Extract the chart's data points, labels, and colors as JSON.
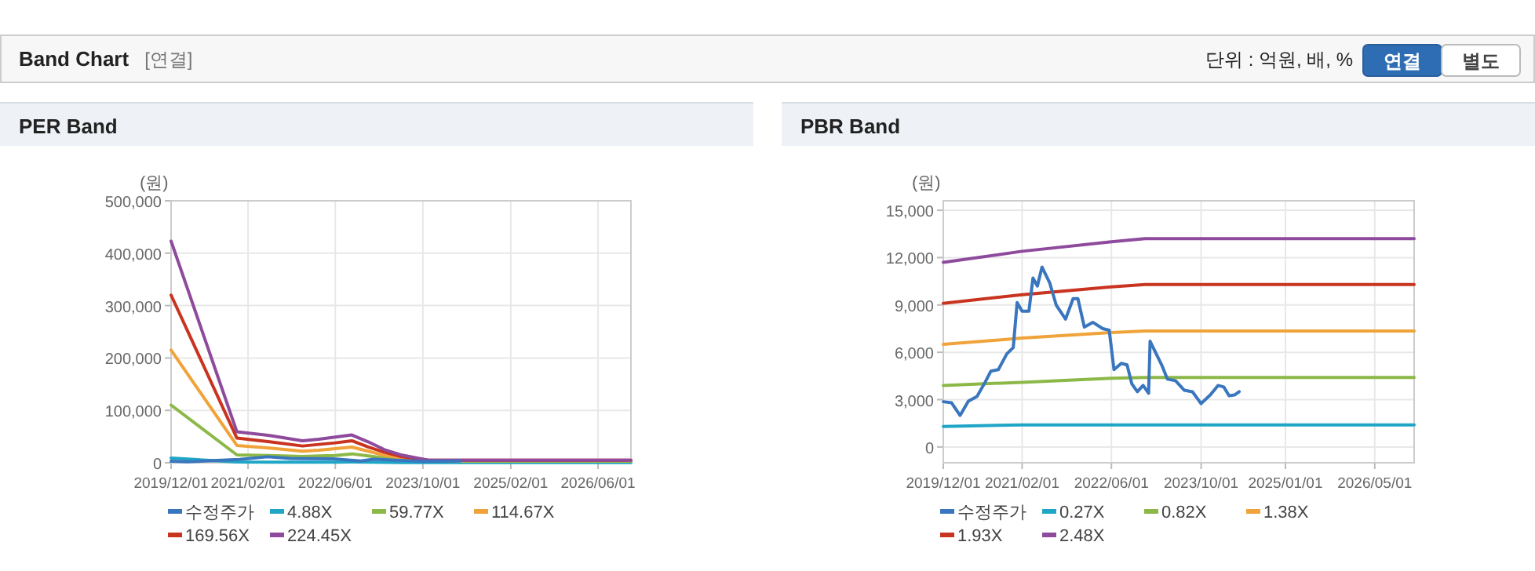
{
  "chart_data": [
    {
      "type": "other",
      "title": "Band Chart",
      "annotations": [
        "[연결]",
        "단위 : 억원, 배, %",
        "연결",
        "별도"
      ]
    },
    {
      "type": "line",
      "title": "PER Band",
      "ylabel": "(원)",
      "grid": true,
      "legend": "bottom",
      "xlim": [
        "2019-12-01",
        "2026-12-01"
      ],
      "xticks": [
        {
          "value": "2019-12-01",
          "label": "2019/12/01"
        },
        {
          "value": "2021-02-01",
          "label": "2021/02/01"
        },
        {
          "value": "2022-06-01",
          "label": "2022/06/01"
        },
        {
          "value": "2023-10-01",
          "label": "2023/10/01"
        },
        {
          "value": "2025-02-01",
          "label": "2025/02/01"
        },
        {
          "value": "2026-06-01",
          "label": "2026/06/01"
        }
      ],
      "ylim": [
        0,
        500000
      ],
      "yticks": [
        0,
        {
          "value": 100000,
          "label": "100,000"
        },
        {
          "value": 200000,
          "label": "200,000"
        },
        {
          "value": 300000,
          "label": "300,000"
        },
        {
          "value": 400000,
          "label": "400,000"
        },
        {
          "value": 500000,
          "label": "500,000"
        }
      ],
      "x": [
        "2019-12-01",
        "2020-12-01",
        "2021-06-01",
        "2021-12-01",
        "2022-03-01",
        "2022-06-01",
        "2022-09-01",
        "2022-12-01",
        "2023-03-01",
        "2023-06-01",
        "2023-11-01",
        "2026-12-01"
      ],
      "series": [
        {
          "name": "수정주가",
          "color": "#3a76be",
          "x": [
            "2019-12-01",
            "2020-03-01",
            "2020-06-01",
            "2020-12-15",
            "2021-05-20",
            "2021-09-25",
            "2022-05-20",
            "2022-10-20",
            "2023-01-01",
            "2023-10-01",
            "2024-04-25"
          ],
          "values": [
            2870,
            2000,
            3200,
            6300,
            11400,
            8100,
            7400,
            3500,
            6700,
            2750,
            3500
          ]
        },
        {
          "name": "4.88X",
          "color": "#1fa6c6",
          "values": [
            9000,
            1500,
            1200,
            1000,
            1100,
            1200,
            1400,
            1100,
            800,
            500,
            300,
            300
          ]
        },
        {
          "name": "59.77X",
          "color": "#8cb848",
          "values": [
            110000,
            15000,
            14000,
            12000,
            13000,
            14000,
            17000,
            13000,
            9000,
            6000,
            3000,
            3000
          ]
        },
        {
          "name": "114.67X",
          "color": "#f0a33a",
          "values": [
            215000,
            33000,
            28000,
            22000,
            24000,
            27000,
            30000,
            22000,
            14000,
            9000,
            4000,
            4000
          ]
        },
        {
          "name": "169.56X",
          "color": "#c8341f",
          "values": [
            320000,
            47000,
            40000,
            32000,
            35000,
            38000,
            42000,
            30000,
            20000,
            12000,
            5000,
            5000
          ]
        },
        {
          "name": "224.45X",
          "color": "#8e4a9c",
          "values": [
            423000,
            59000,
            52000,
            42000,
            45000,
            49000,
            53000,
            40000,
            25000,
            15000,
            5000,
            5000
          ]
        }
      ]
    },
    {
      "type": "line",
      "title": "PBR Band",
      "ylabel": "(원)",
      "grid": true,
      "legend": "bottom",
      "xlim": [
        "2019-12-01",
        "2026-12-01"
      ],
      "xticks": [
        {
          "value": "2019-12-01",
          "label": "2019/12/01"
        },
        {
          "value": "2021-02-01",
          "label": "2021/02/01"
        },
        {
          "value": "2022-06-01",
          "label": "2022/06/01"
        },
        {
          "value": "2023-10-01",
          "label": "2023/10/01"
        },
        {
          "value": "2025-01-01",
          "label": "2025/01/01"
        },
        {
          "value": "2026-05-01",
          "label": "2026/05/01"
        }
      ],
      "ylim": [
        -1000,
        15600
      ],
      "yticks": [
        0,
        {
          "value": 3000,
          "label": "3,000"
        },
        {
          "value": 6000,
          "label": "6,000"
        },
        {
          "value": 9000,
          "label": "9,000"
        },
        {
          "value": 12000,
          "label": "12,000"
        },
        {
          "value": 15000,
          "label": "15,000"
        }
      ],
      "x": [
        "2019-12-01",
        "2021-02-01",
        "2022-06-01",
        "2022-12-01",
        "2026-12-01"
      ],
      "series": [
        {
          "name": "수정주가",
          "color": "#3a76be",
          "x": [
            "2019-12-01",
            "2020-01-15",
            "2020-03-01",
            "2020-04-15",
            "2020-06-01",
            "2020-07-15",
            "2020-08-15",
            "2020-09-25",
            "2020-11-10",
            "2020-12-15",
            "2021-01-05",
            "2021-02-01",
            "2021-03-10",
            "2021-04-01",
            "2021-04-25",
            "2021-05-20",
            "2021-07-01",
            "2021-08-05",
            "2021-09-25",
            "2021-11-05",
            "2021-12-01",
            "2022-01-05",
            "2022-02-20",
            "2022-04-15",
            "2022-05-20",
            "2022-06-15",
            "2022-07-25",
            "2022-08-25",
            "2022-09-20",
            "2022-10-20",
            "2022-11-20",
            "2022-12-20",
            "2022-12-28",
            "2023-03-01",
            "2023-04-01",
            "2023-05-15",
            "2023-07-01",
            "2023-08-15",
            "2023-10-01",
            "2023-11-20",
            "2024-01-01",
            "2024-02-01",
            "2024-03-01",
            "2024-04-01",
            "2024-04-25"
          ],
          "values": [
            2870,
            2800,
            2000,
            2900,
            3200,
            4100,
            4800,
            4900,
            5900,
            6300,
            9150,
            8600,
            8600,
            10700,
            10200,
            11400,
            10400,
            9000,
            8100,
            9400,
            9400,
            7600,
            7900,
            7500,
            7400,
            4900,
            5300,
            5200,
            4000,
            3500,
            3900,
            3400,
            6700,
            5200,
            4300,
            4200,
            3600,
            3500,
            2750,
            3300,
            3900,
            3800,
            3250,
            3300,
            3500
          ]
        },
        {
          "name": "0.27X",
          "color": "#1fa6c6",
          "values": [
            1300,
            1400,
            1400,
            1400,
            1400
          ]
        },
        {
          "name": "0.82X",
          "color": "#8cb848",
          "values": [
            3900,
            4100,
            4350,
            4400,
            4400
          ]
        },
        {
          "name": "1.38X",
          "color": "#f0a33a",
          "values": [
            6500,
            6900,
            7250,
            7350,
            7350
          ]
        },
        {
          "name": "1.93X",
          "color": "#c8341f",
          "values": [
            9100,
            9650,
            10150,
            10300,
            10300
          ]
        },
        {
          "name": "2.48X",
          "color": "#8e4a9c",
          "values": [
            11700,
            12400,
            13000,
            13200,
            13200
          ]
        }
      ]
    }
  ]
}
